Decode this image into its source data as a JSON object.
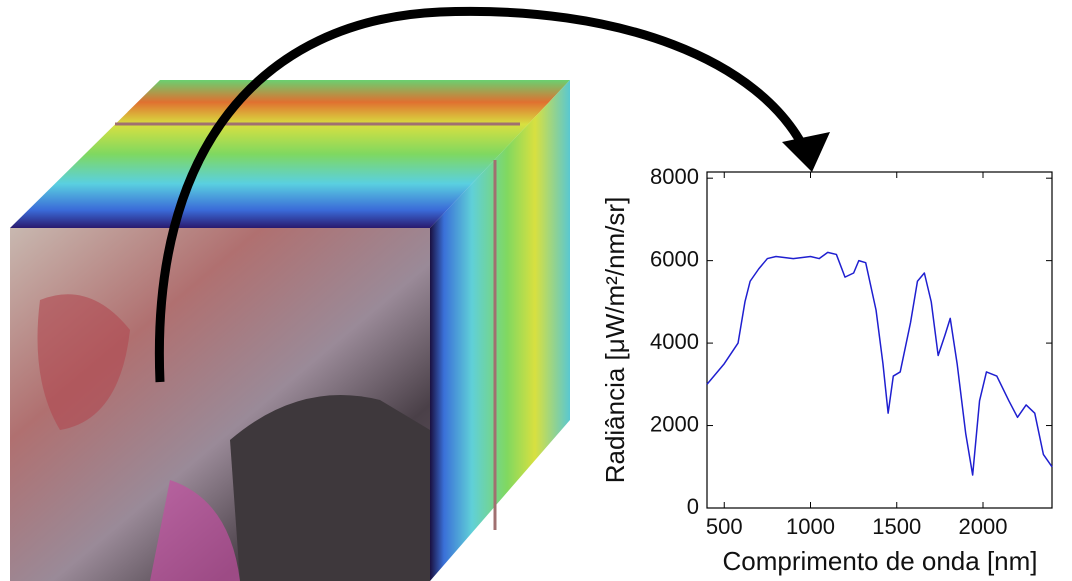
{
  "chart_data": {
    "type": "line",
    "xlabel": "Comprimento de onda [nm]",
    "ylabel": "Radiância [μW/m²/nm/sr]",
    "x": [
      400,
      500,
      580,
      620,
      650,
      700,
      750,
      800,
      900,
      1000,
      1050,
      1100,
      1150,
      1200,
      1250,
      1280,
      1320,
      1380,
      1420,
      1450,
      1480,
      1520,
      1580,
      1620,
      1660,
      1700,
      1740,
      1780,
      1810,
      1850,
      1900,
      1940,
      1980,
      2020,
      2080,
      2150,
      2200,
      2250,
      2300,
      2350,
      2400
    ],
    "values": [
      3000,
      3500,
      4000,
      5000,
      5500,
      5800,
      6050,
      6100,
      6050,
      6100,
      6050,
      6200,
      6150,
      5600,
      5700,
      6000,
      5950,
      4800,
      3500,
      2300,
      3200,
      3300,
      4500,
      5500,
      5700,
      5000,
      3700,
      4200,
      4600,
      3500,
      1800,
      800,
      2600,
      3300,
      3200,
      2600,
      2200,
      2500,
      2300,
      1300,
      1000
    ],
    "color": "#1f1fd0",
    "xlim": [
      400,
      2400
    ],
    "xticks": [
      500,
      1000,
      1500,
      2000
    ],
    "ylim": [
      0,
      8150
    ],
    "yticks": [
      0,
      2000,
      4000,
      6000,
      8000
    ]
  }
}
